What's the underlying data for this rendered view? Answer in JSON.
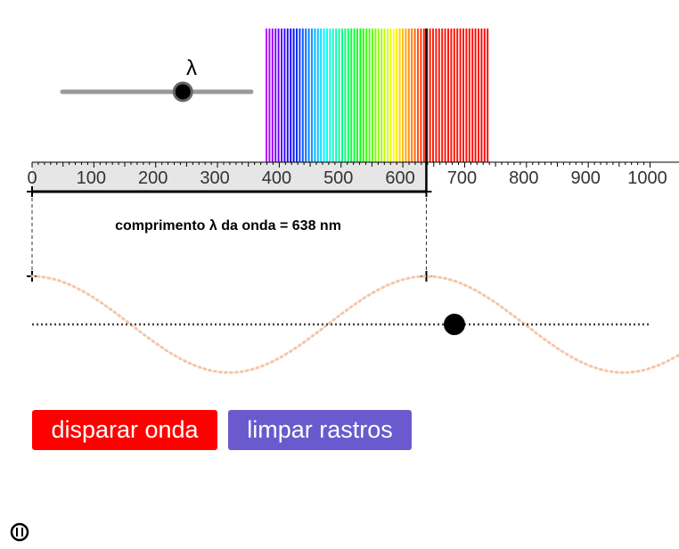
{
  "slider": {
    "label": "λ"
  },
  "ruler": {
    "xlim": [
      0,
      1000
    ],
    "xticks": [
      0,
      100,
      200,
      300,
      400,
      500,
      600,
      700,
      800,
      900,
      1000
    ],
    "wavelength": 638
  },
  "caption": "comprimento λ da onda = 638 nm",
  "buttons": [
    "disparar onda",
    "limpar rastros"
  ]
}
